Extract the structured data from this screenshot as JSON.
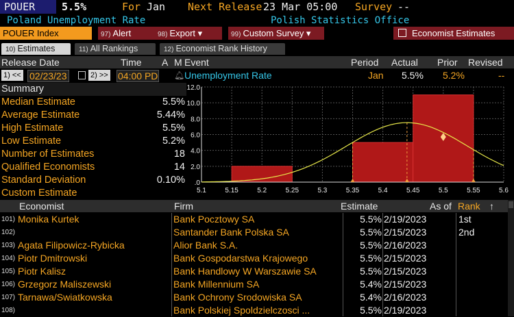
{
  "header": {
    "ticker": "POUER",
    "value": "5.5%",
    "for_label": "For",
    "for_value": "Jan",
    "next_label": "Next Release",
    "next_value": "23 Mar 05:00",
    "survey_label": "Survey",
    "survey_value": "--",
    "name": "Poland Unemployment Rate",
    "source": "Polish Statistics Office"
  },
  "toolbar": {
    "index_label": "POUER Index",
    "alert_num": "97)",
    "alert_label": "Alert",
    "export_num": "98)",
    "export_label": "Export ▾",
    "custom_num": "99)",
    "custom_label": "Custom Survey ▾",
    "econ_label": "Economist Estimates"
  },
  "tabs": [
    {
      "num": "10)",
      "label": "Estimates"
    },
    {
      "num": "11)",
      "label": "All Rankings"
    },
    {
      "num": "12)",
      "label": "Economist Rank History"
    }
  ],
  "columns": {
    "release_date": "Release Date",
    "time": "Time",
    "a": "A",
    "m": "M",
    "event": "Event",
    "period": "Period",
    "actual": "Actual",
    "prior": "Prior",
    "revised": "Revised"
  },
  "controls": {
    "prev_num": "1)",
    "prev": "<<",
    "date": "02/23/23",
    "next_num": "2)",
    "next": ">>",
    "time": "04:00",
    "tz": "PD",
    "event": "Unemployment Rate",
    "period": "Jan",
    "actual": "5.5%",
    "prior": "5.2%",
    "revised": "--"
  },
  "summary": {
    "title": "Summary",
    "rows": [
      {
        "label": "Median Estimate",
        "value": "5.5%"
      },
      {
        "label": "Average Estimate",
        "value": "5.44%"
      },
      {
        "label": "High Estimate",
        "value": "5.5%"
      },
      {
        "label": "Low Estimate",
        "value": "5.2%"
      },
      {
        "label": "Number of Estimates",
        "value": "18"
      },
      {
        "label": "Qualified Economists",
        "value": "14"
      },
      {
        "label": "Standard Deviation",
        "value": "0.10%"
      },
      {
        "label": "Custom Estimate",
        "value": ""
      }
    ]
  },
  "chart_data": {
    "type": "bar",
    "title": "",
    "bins": [
      {
        "from": 5.15,
        "to": 5.25,
        "count": 2
      },
      {
        "from": 5.35,
        "to": 5.45,
        "count": 5
      },
      {
        "from": 5.45,
        "to": 5.55,
        "count": 11
      }
    ],
    "x_ticks": [
      "5.1",
      "5.15",
      "5.2",
      "5.25",
      "5.3",
      "5.35",
      "5.4",
      "5.45",
      "5.5",
      "5.55",
      "5.6"
    ],
    "y_ticks": [
      ".0",
      "2.0",
      "4.0",
      "6.0",
      "8.0",
      "10.0",
      "12.0"
    ],
    "xlim": [
      5.1,
      5.6
    ],
    "ylim": [
      0,
      12
    ],
    "curve_mean": 5.44,
    "curve_sd": 0.1,
    "curve_peak": 7.5,
    "markers": {
      "diamond_x": 5.5,
      "diamond_y": 5.7,
      "dashed_lines": [
        5.35,
        5.44,
        5.55
      ]
    },
    "grid": true,
    "colors": {
      "bar": "#b01818",
      "curve": "#e8e84a",
      "diamond": "#ffd28a",
      "grid": "#555555"
    }
  },
  "table": {
    "headers": {
      "economist": "Economist",
      "firm": "Firm",
      "estimate": "Estimate",
      "asof": "As of",
      "rank": "Rank",
      "sort": "↑"
    },
    "rows": [
      {
        "num": "101)",
        "economist": "Monika Kurtek",
        "firm": "Bank Pocztowy SA",
        "estimate": "5.5%",
        "asof": "2/19/2023",
        "rank": "1st"
      },
      {
        "num": "102)",
        "economist": "",
        "firm": "Santander Bank Polska SA",
        "estimate": "5.5%",
        "asof": "2/15/2023",
        "rank": "2nd"
      },
      {
        "num": "103)",
        "economist": "Agata Filipowicz-Rybicka",
        "firm": "Alior Bank S.A.",
        "estimate": "5.5%",
        "asof": "2/16/2023",
        "rank": ""
      },
      {
        "num": "104)",
        "economist": "Piotr Dmitrowski",
        "firm": "Bank Gospodarstwa Krajowego",
        "estimate": "5.5%",
        "asof": "2/15/2023",
        "rank": ""
      },
      {
        "num": "105)",
        "economist": "Piotr Kalisz",
        "firm": "Bank Handlowy W Warszawie SA",
        "estimate": "5.5%",
        "asof": "2/15/2023",
        "rank": ""
      },
      {
        "num": "106)",
        "economist": "Grzegorz Maliszewski",
        "firm": "Bank Millennium SA",
        "estimate": "5.4%",
        "asof": "2/15/2023",
        "rank": ""
      },
      {
        "num": "107)",
        "economist": "Tarnawa/Swiatkowska",
        "firm": "Bank Ochrony Srodowiska SA",
        "estimate": "5.4%",
        "asof": "2/16/2023",
        "rank": ""
      },
      {
        "num": "108)",
        "economist": "",
        "firm": "Bank Polskiej Spoldzielczosci ...",
        "estimate": "5.5%",
        "asof": "2/19/2023",
        "rank": ""
      }
    ]
  }
}
